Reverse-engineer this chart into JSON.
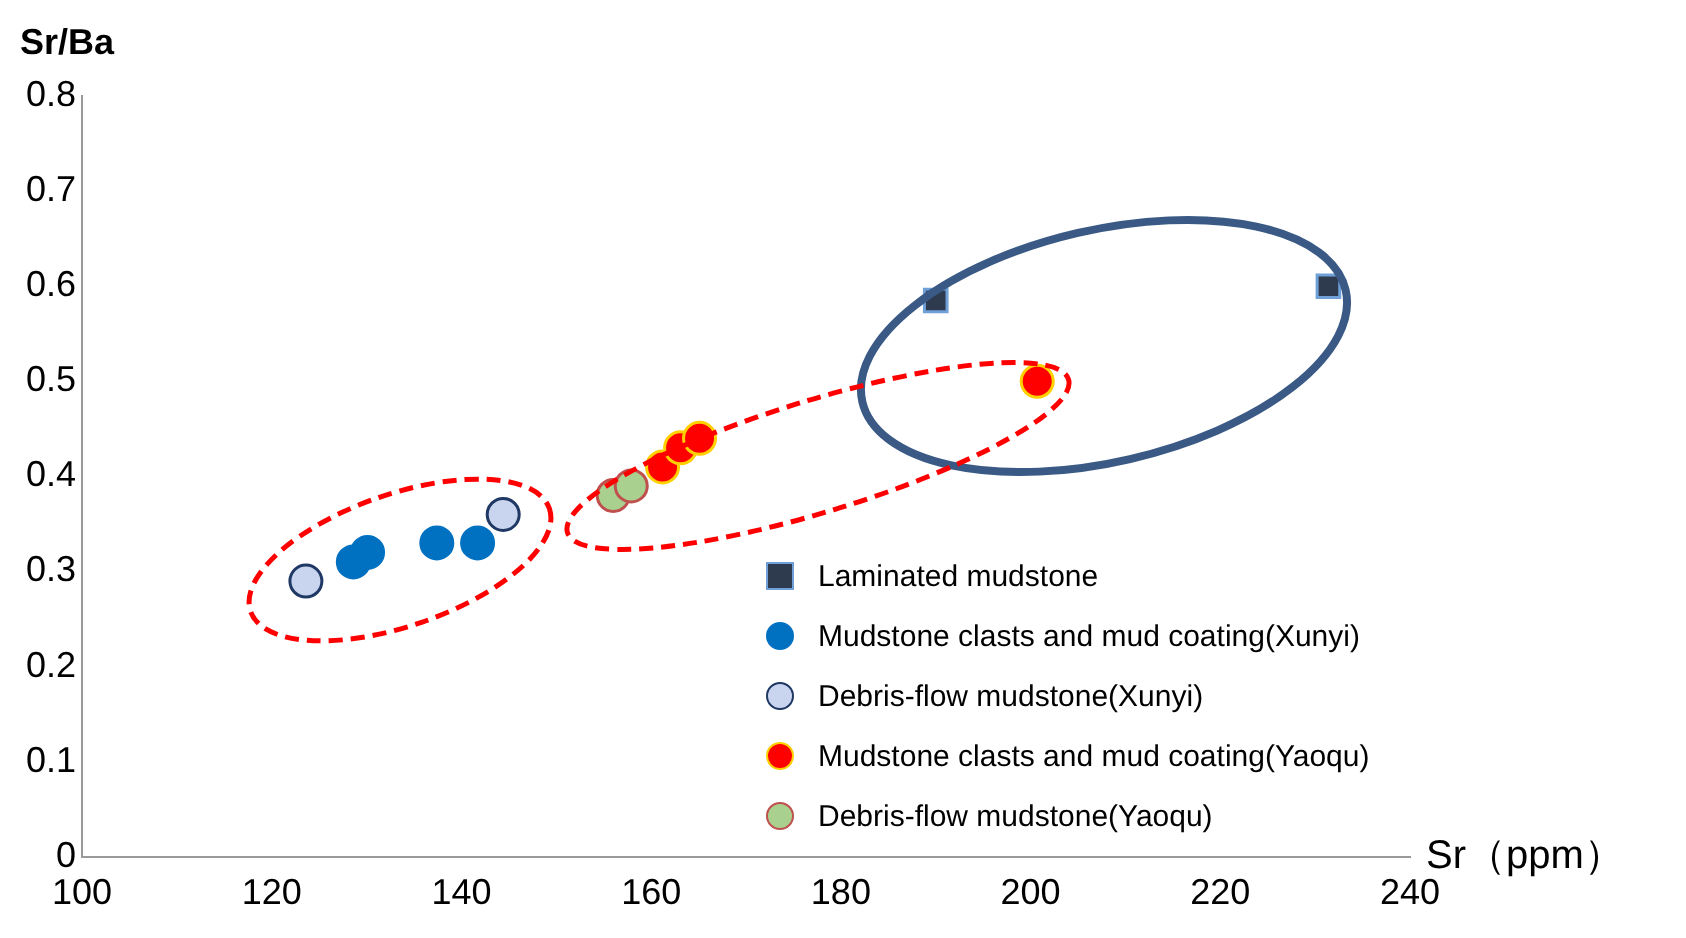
{
  "chart_data": {
    "type": "scatter",
    "xlabel": "Sr（ppm）",
    "ylabel": "Sr/Ba",
    "xlim": [
      100,
      240
    ],
    "xticks": [
      100,
      120,
      140,
      160,
      180,
      200,
      220,
      240
    ],
    "ylim": [
      0,
      0.8
    ],
    "yticks": [
      0,
      0.1,
      0.2,
      0.3,
      0.4,
      0.5,
      0.6,
      0.7,
      0.8
    ],
    "grid": false,
    "legend": "bottom right",
    "series": [
      {
        "name": "Laminated mudstone",
        "color": "#2e3b4e",
        "marker": "square",
        "x": [
          190,
          231.4
        ],
        "values": [
          0.585,
          0.6
        ]
      },
      {
        "name": "Mudstone clasts and  mud coating(Xunyi)",
        "color": "#0070c0",
        "marker": "circle",
        "x": [
          128.6,
          130.1,
          137.4,
          141.7
        ],
        "values": [
          0.31,
          0.32,
          0.33,
          0.33
        ]
      },
      {
        "name": "Debris-flow mudstone(Xunyi)",
        "color": "#c9d5ee",
        "marker": "circle",
        "x": [
          123.6,
          144.4
        ],
        "values": [
          0.29,
          0.36
        ]
      },
      {
        "name": "Mudstone clasts and  mud coating(Yaoqu)",
        "color": "#ff0000",
        "marker": "circle",
        "x": [
          161.2,
          163.1,
          165.1,
          200.7
        ],
        "values": [
          0.41,
          0.43,
          0.44,
          0.5
        ]
      },
      {
        "name": "Debris-flow mudstone(Yaoqu)",
        "color": "#a9d08e",
        "marker": "circle",
        "x": [
          156,
          157.9
        ],
        "values": [
          0.38,
          0.39
        ]
      }
    ]
  }
}
